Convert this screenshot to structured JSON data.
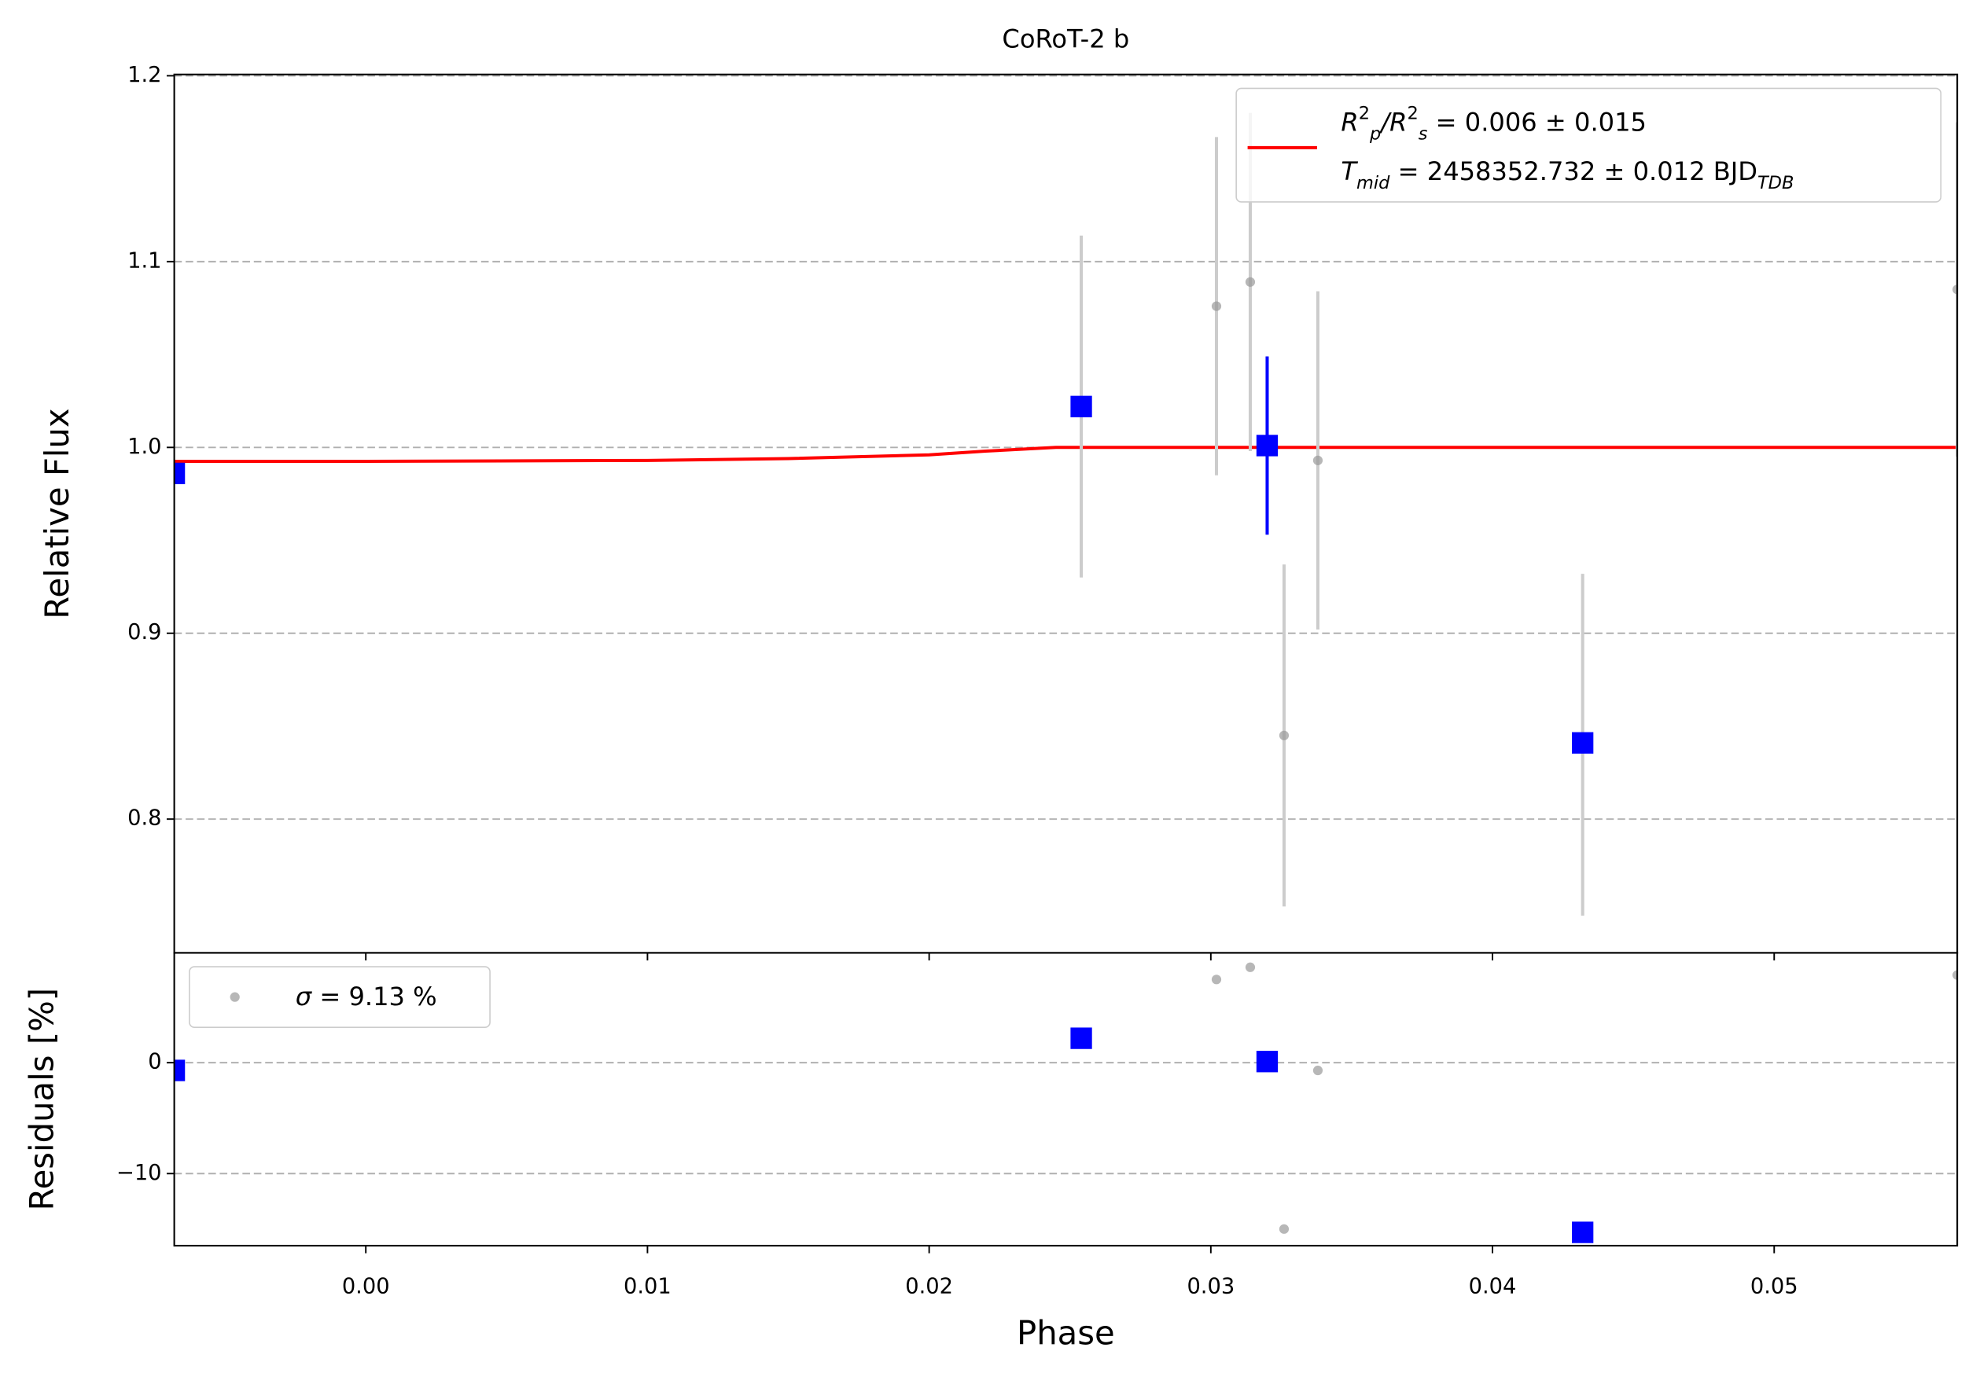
{
  "chart_data": [
    {
      "type": "errorbar",
      "title": "CoRoT-2 b",
      "ylabel": "Relative Flux",
      "xlim": [
        -0.0068,
        0.0565
      ],
      "ylim": [
        0.728,
        1.2007
      ],
      "yticks": [
        0.8,
        0.9,
        {
          "value": 1,
          "label": "1.0"
        },
        1.1,
        1.2
      ],
      "grid": true,
      "legend": "upper right",
      "series": [
        {
          "kind": "line",
          "color": "#ff0000",
          "name_parts": [
            {
              "text": "R",
              "kind": "italic"
            },
            {
              "text": "2",
              "kind": "sup"
            },
            {
              "text": "p",
              "kind": "sub"
            },
            {
              "text": "/",
              "kind": "italic"
            },
            {
              "text": "R",
              "kind": "italic"
            },
            {
              "text": "2",
              "kind": "sup"
            },
            {
              "text": "s",
              "kind": "sub"
            },
            {
              "text": " = 0.006 ± 0.015",
              "kind": "normal"
            }
          ],
          "name2_parts": [
            {
              "text": "T",
              "kind": "italic"
            },
            {
              "text": "mid",
              "kind": "sub"
            },
            {
              "text": " = 2458352.732 ± 0.012 BJD",
              "kind": "normal"
            },
            {
              "text": "TDB",
              "kind": "subnormal"
            }
          ],
          "x": [
            -0.0068,
            0.0,
            0.01,
            0.015,
            0.02,
            0.022,
            0.0245,
            0.0565
          ],
          "values": [
            0.9925,
            0.9925,
            0.993,
            0.994,
            0.996,
            0.998,
            1.0,
            1.0
          ]
        },
        {
          "kind": "points",
          "color": "#999999",
          "errcolor": "#cccccc",
          "x": [
            0.0254,
            0.0302,
            0.0314,
            0.0326,
            0.0338,
            0.0432,
            0.0565
          ],
          "values": [
            1.022,
            1.076,
            1.089,
            0.845,
            0.993,
            0.84,
            1.085
          ],
          "errors": [
            0.092,
            0.091,
            0.091,
            0.092,
            0.091,
            0.092,
            0.09
          ]
        },
        {
          "kind": "squares",
          "color": "#0000ff",
          "x": [
            -0.0068,
            0.0254,
            0.032,
            0.0432
          ],
          "values": [
            0.986,
            1.022,
            1.001,
            0.841
          ],
          "errors": [
            null,
            null,
            0.048,
            null
          ]
        }
      ]
    },
    {
      "type": "errorbar",
      "xlabel": "Phase",
      "ylabel": "Residuals [%]",
      "xlim": [
        -0.0068,
        0.0565
      ],
      "ylim": [
        -16.5,
        9.9
      ],
      "xticks": [
        {
          "value": 0,
          "label": "0.00"
        },
        0.01,
        0.02,
        0.03,
        0.04,
        0.05
      ],
      "yticks": [
        {
          "value": -10,
          "label": "−10"
        },
        0
      ],
      "grid": true,
      "legend": "upper left",
      "series": [
        {
          "kind": "points",
          "color": "#999999",
          "name_parts": [
            {
              "text": "σ",
              "kind": "italic"
            },
            {
              "text": " = 9.13 %",
              "kind": "normal"
            }
          ],
          "x": [
            0.0254,
            0.0302,
            0.0314,
            0.0326,
            0.0338,
            0.0432,
            0.0565
          ],
          "values": [
            2.2,
            7.5,
            8.6,
            -15.0,
            -0.7,
            -15.3,
            7.9
          ]
        },
        {
          "kind": "squares",
          "color": "#0000ff",
          "x": [
            -0.0068,
            0.0254,
            0.032,
            0.0432
          ],
          "values": [
            -0.7,
            2.2,
            0.1,
            -15.3
          ]
        }
      ]
    }
  ]
}
